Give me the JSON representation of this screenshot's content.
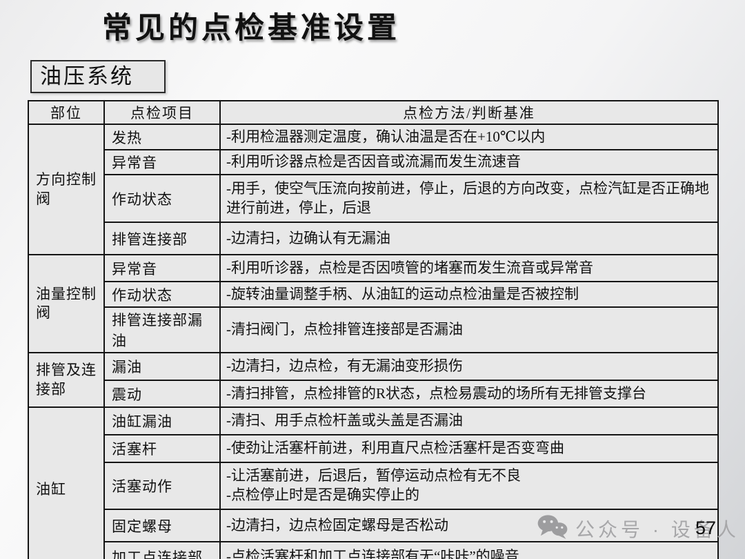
{
  "slide": {
    "title": "常见的点检基准设置",
    "section_label": "油压系统",
    "page_number": "57",
    "watermark_text": "公众号 · 设备人",
    "watermark_icon": "wechat-icon"
  },
  "colors": {
    "cell_background": "#e8e8e8",
    "border": "#141414",
    "watermark_gray": "#a7a7a9"
  },
  "table": {
    "headers": [
      "部位",
      "点检项目",
      "点检方法/判断基准"
    ],
    "groups": [
      {
        "part": "方向控制阀",
        "rows": [
          {
            "item": "发热",
            "method": "-利用检温器测定温度，确认油温是否在+10℃以内"
          },
          {
            "item": "异常音",
            "method": "-利用听诊器点检是否因音或流漏而发生流速音"
          },
          {
            "item": "作动状态",
            "method": "-用手，使空气压流向按前进，停止，后退的方向改变，点检汽缸是否正确地进行前进，停止，后退"
          },
          {
            "item": "排管连接部",
            "method": "-边清扫，边确认有无漏油"
          }
        ]
      },
      {
        "part": "油量控制阀",
        "rows": [
          {
            "item": "异常音",
            "method": "-利用听诊器，点检是否因喷管的堵塞而发生流音或异常音"
          },
          {
            "item": "作动状态",
            "method": "-旋转油量调整手柄、从油缸的运动点检油量是否被控制"
          },
          {
            "item": "排管连接部漏油",
            "method": "-清扫阀门，点检排管连接部是否漏油"
          }
        ]
      },
      {
        "part": "排管及连接部",
        "rows": [
          {
            "item": "漏油",
            "method": "-边清扫，边点检，有无漏油变形损伤"
          },
          {
            "item": "震动",
            "method": "-清扫排管，点检排管的R状态，点检易震动的场所有无排管支撑台"
          }
        ]
      },
      {
        "part": "油缸",
        "rows": [
          {
            "item": "油缸漏油",
            "method": "-清扫、用手点检杆盖或头盖是否漏油"
          },
          {
            "item": "活塞杆",
            "method": "-使劲让活塞杆前进，利用直尺点检活塞杆是否变弯曲"
          },
          {
            "item": "活塞动作",
            "method": "-让活塞前进，后退后，暂停运动点检有无不良\n-点检停止时是否是确实停止的"
          },
          {
            "item": "固定螺母",
            "method": "-边清扫，边点检固定螺母是否松动"
          },
          {
            "item": "加工点连接部",
            "method": "-点检活塞杆和加工点连接部有无“咔咔”的噪音"
          }
        ]
      }
    ]
  }
}
